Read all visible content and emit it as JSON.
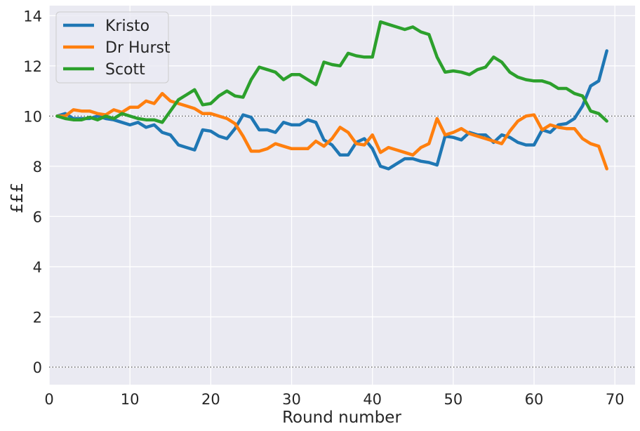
{
  "chart_data": {
    "type": "line",
    "xlabel": "Round number",
    "ylabel": "£££",
    "xlim": [
      0,
      72.5
    ],
    "ylim": [
      -0.7,
      14.4
    ],
    "xticks": [
      0,
      10,
      20,
      30,
      40,
      50,
      60,
      70
    ],
    "yticks": [
      0,
      2,
      4,
      6,
      8,
      10,
      12,
      14
    ],
    "reference_lines": [
      0,
      10
    ],
    "grid": true,
    "legend_position": "top-left",
    "colors": {
      "background": "#EAEAF2",
      "grid": "#FFFFFF",
      "text": "#262626",
      "reference": "#555555"
    },
    "x": [
      1,
      2,
      3,
      4,
      5,
      6,
      7,
      8,
      9,
      10,
      11,
      12,
      13,
      14,
      15,
      16,
      17,
      18,
      19,
      20,
      21,
      22,
      23,
      24,
      25,
      26,
      27,
      28,
      29,
      30,
      31,
      32,
      33,
      34,
      35,
      36,
      37,
      38,
      39,
      40,
      41,
      42,
      43,
      44,
      45,
      46,
      47,
      48,
      49,
      50,
      51,
      52,
      53,
      54,
      55,
      56,
      57,
      58,
      59,
      60,
      61,
      62,
      63,
      64,
      65,
      66,
      67,
      68,
      69
    ],
    "series": [
      {
        "name": "Kristo",
        "color": "#1F77B4",
        "values": [
          10.0,
          10.1,
          9.9,
          9.9,
          9.9,
          10.0,
          9.9,
          9.85,
          9.75,
          9.65,
          9.75,
          9.55,
          9.65,
          9.35,
          9.25,
          8.85,
          8.75,
          8.65,
          9.45,
          9.4,
          9.2,
          9.1,
          9.5,
          10.05,
          9.95,
          9.45,
          9.45,
          9.35,
          9.75,
          9.65,
          9.65,
          9.85,
          9.75,
          9.05,
          8.85,
          8.45,
          8.45,
          8.95,
          9.1,
          8.7,
          8.0,
          7.9,
          8.1,
          8.3,
          8.3,
          8.2,
          8.15,
          8.05,
          9.2,
          9.15,
          9.05,
          9.35,
          9.25,
          9.25,
          8.95,
          9.25,
          9.15,
          8.95,
          8.85,
          8.85,
          9.45,
          9.35,
          9.65,
          9.7,
          9.9,
          10.4,
          11.2,
          11.4,
          12.6
        ]
      },
      {
        "name": "Dr Hurst",
        "color": "#FF7F0E",
        "values": [
          10.0,
          10.0,
          10.25,
          10.2,
          10.2,
          10.1,
          10.05,
          10.25,
          10.15,
          10.35,
          10.35,
          10.6,
          10.5,
          10.9,
          10.6,
          10.5,
          10.4,
          10.3,
          10.1,
          10.1,
          10.0,
          9.9,
          9.7,
          9.2,
          8.6,
          8.6,
          8.7,
          8.9,
          8.8,
          8.7,
          8.7,
          8.7,
          9.0,
          8.8,
          9.1,
          9.55,
          9.35,
          8.9,
          8.85,
          9.25,
          8.55,
          8.75,
          8.65,
          8.55,
          8.45,
          8.75,
          8.9,
          9.9,
          9.25,
          9.35,
          9.5,
          9.3,
          9.2,
          9.1,
          9.0,
          8.9,
          9.4,
          9.8,
          10.0,
          10.05,
          9.45,
          9.65,
          9.55,
          9.5,
          9.5,
          9.1,
          8.9,
          8.8,
          7.9
        ]
      },
      {
        "name": "Scott",
        "color": "#2CA02C",
        "values": [
          10.0,
          9.9,
          9.85,
          9.85,
          9.95,
          9.85,
          10.0,
          9.9,
          10.1,
          10.0,
          9.9,
          9.85,
          9.85,
          9.75,
          10.2,
          10.65,
          10.85,
          11.05,
          10.45,
          10.5,
          10.8,
          11.0,
          10.8,
          10.75,
          11.45,
          11.95,
          11.85,
          11.75,
          11.45,
          11.65,
          11.65,
          11.45,
          11.25,
          12.15,
          12.05,
          12.0,
          12.5,
          12.4,
          12.35,
          12.35,
          13.75,
          13.65,
          13.55,
          13.45,
          13.55,
          13.35,
          13.25,
          12.35,
          11.75,
          11.8,
          11.75,
          11.65,
          11.85,
          11.95,
          12.35,
          12.15,
          11.75,
          11.55,
          11.45,
          11.4,
          11.4,
          11.3,
          11.1,
          11.1,
          10.9,
          10.8,
          10.2,
          10.1,
          9.8
        ]
      }
    ]
  }
}
